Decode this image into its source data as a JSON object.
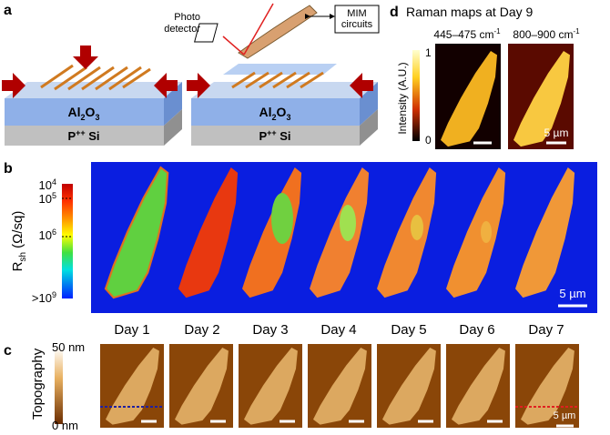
{
  "panel_a": {
    "label": "a",
    "photo_detector": [
      "Photo",
      "detector"
    ],
    "mim_circuits": [
      "MIM",
      "circuits"
    ],
    "left_substrate": {
      "oxide": [
        "Al",
        "2",
        "O",
        "3"
      ],
      "silicon": [
        "P",
        "++",
        " Si"
      ]
    },
    "right_substrate": {
      "oxide": [
        "Al",
        "2",
        "O",
        "3"
      ],
      "silicon": [
        "P",
        "++",
        " Si"
      ]
    }
  },
  "panel_b": {
    "label": "b",
    "colorbar_ticks": [
      [
        "10",
        "4"
      ],
      [
        "10",
        "5"
      ],
      [
        "10",
        "6"
      ],
      [
        ">10",
        "9"
      ]
    ],
    "colorbar_title": [
      "R",
      "sh",
      " (Ω/sq)"
    ],
    "scale_bar": "5 µm"
  },
  "panel_c": {
    "label": "c",
    "days": [
      "Day 1",
      "Day 2",
      "Day 3",
      "Day 4",
      "Day 5",
      "Day 6",
      "Day 7"
    ],
    "colorbar_title": "Topography",
    "colorbar_max": "50 nm",
    "colorbar_min": "0 nm",
    "scale_bar": "5 µm"
  },
  "panel_d": {
    "label": "d",
    "title": "Raman maps at Day 9",
    "map_labels": [
      [
        "445–475 cm",
        "-1"
      ],
      [
        "800–900 cm",
        "-1"
      ]
    ],
    "colorbar_title": "Intensity (A.U.)",
    "colorbar_max": "1",
    "colorbar_min": "0",
    "scale_bar": "5 µm"
  }
}
